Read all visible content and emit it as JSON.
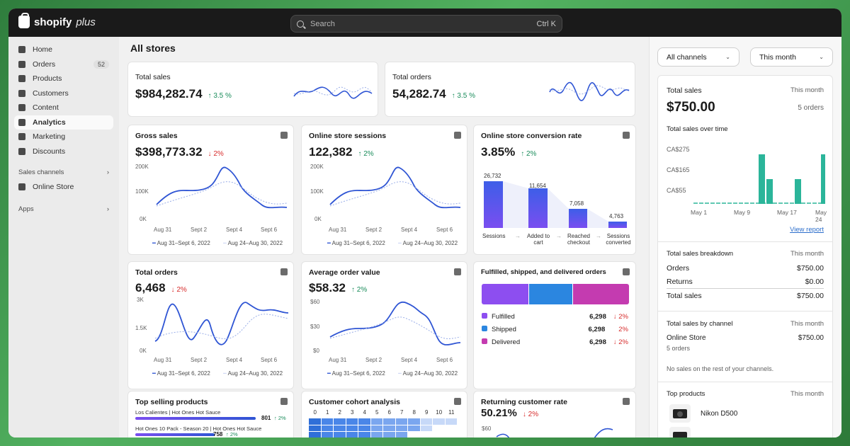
{
  "app": {
    "brand": "shopify",
    "brand_suffix": "plus"
  },
  "search": {
    "placeholder": "Search",
    "shortcut": "Ctrl K"
  },
  "sidebar": {
    "items": [
      {
        "label": "Home",
        "icon": "home-icon"
      },
      {
        "label": "Orders",
        "icon": "orders-icon",
        "badge": "52"
      },
      {
        "label": "Products",
        "icon": "tag-icon"
      },
      {
        "label": "Customers",
        "icon": "person-icon"
      },
      {
        "label": "Content",
        "icon": "content-icon"
      },
      {
        "label": "Analytics",
        "icon": "analytics-icon",
        "active": true
      },
      {
        "label": "Marketing",
        "icon": "marketing-icon"
      },
      {
        "label": "Discounts",
        "icon": "discount-icon"
      }
    ],
    "sales_channels": "Sales channels",
    "online_store": "Online Store",
    "apps": "Apps"
  },
  "main": {
    "title": "All stores",
    "total_sales": {
      "label": "Total sales",
      "value": "$984,282.74",
      "delta": "3.5 %"
    },
    "total_orders": {
      "label": "Total orders",
      "value": "54,282.74",
      "delta": "3.5 %"
    },
    "gross_sales": {
      "label": "Gross sales",
      "value": "$398,773.32",
      "delta": "2%",
      "yticks": [
        "200K",
        "100K",
        "0K"
      ]
    },
    "sessions": {
      "label": "Online store sessions",
      "value": "122,382",
      "delta": "2%",
      "yticks": [
        "200K",
        "100K",
        "0K"
      ]
    },
    "conversion": {
      "label": "Online store conversion rate",
      "value": "3.85%",
      "delta": "2%",
      "steps": [
        {
          "label": "Sessions",
          "value": "26,732"
        },
        {
          "label": "Added to cart",
          "value": "11,654"
        },
        {
          "label": "Reached checkout",
          "value": "7,058"
        },
        {
          "label": "Sessions converted",
          "value": "4,763"
        }
      ]
    },
    "orders_chart": {
      "label": "Total orders",
      "value": "6,468",
      "delta": "2%",
      "yticks": [
        "3K",
        "1.5K",
        "0K"
      ]
    },
    "aov": {
      "label": "Average order value",
      "value": "$58.32",
      "delta": "2%",
      "yticks": [
        "$60",
        "$30",
        "$0"
      ]
    },
    "fulfilled": {
      "label": "Fulfilled, shipped, and delivered orders",
      "rows": [
        {
          "label": "Fulfilled",
          "value": "6,298",
          "delta": "2%",
          "color": "#8d4ef0"
        },
        {
          "label": "Shipped",
          "value": "6,298",
          "delta": "2%",
          "color": "#2b86e0"
        },
        {
          "label": "Delivered",
          "value": "6,298",
          "delta": "2%",
          "color": "#c43bb0"
        }
      ]
    },
    "xticks": [
      "Aug 31",
      "Sept 2",
      "Sept 4",
      "Sept 6"
    ],
    "legend_current": "Aug 31–Sept 6, 2022",
    "legend_previous": "Aug 24–Aug 30, 2022",
    "top_products": {
      "label": "Top selling products",
      "items": [
        {
          "name": "Los Calientes | Hot Ones Hot Sauce",
          "value": "801",
          "delta": "2%"
        },
        {
          "name": "Hot Ones 10 Pack - Season 20 | Hot Ones Hot Sauce",
          "value": "758",
          "delta": "2%"
        }
      ]
    },
    "cohort": {
      "label": "Customer cohort analysis",
      "cols": [
        "0",
        "1",
        "2",
        "3",
        "4",
        "5",
        "6",
        "7",
        "8",
        "9",
        "10",
        "11"
      ]
    },
    "returning": {
      "label": "Returning customer rate",
      "value": "50.21%",
      "delta": "2%",
      "ytick": "$60"
    }
  },
  "right": {
    "channels_dd": "All channels",
    "period_dd": "This month",
    "total_sales": {
      "label": "Total sales",
      "period": "This month",
      "value": "$750.00",
      "orders": "5 orders"
    },
    "over_time": {
      "label": "Total sales over time",
      "yticks": [
        "CA$275",
        "CA$165",
        "CA$55"
      ],
      "xticks": [
        "May 1",
        "May 9",
        "May 17",
        "May 24"
      ],
      "link": "View report"
    },
    "breakdown": {
      "label": "Total sales breakdown",
      "period": "This month",
      "rows": [
        {
          "label": "Orders",
          "value": "$750.00"
        },
        {
          "label": "Returns",
          "value": "$0.00"
        },
        {
          "label": "Total sales",
          "value": "$750.00"
        }
      ]
    },
    "by_channel": {
      "label": "Total sales by channel",
      "period": "This month",
      "channel": "Online Store",
      "value": "$750.00",
      "orders": "5 orders",
      "note": "No sales on the rest of your channels."
    },
    "top_products": {
      "label": "Top products",
      "period": "This month",
      "item": "Nikon D500"
    }
  },
  "colors": {
    "accent": "#2f55d4",
    "teal": "#2bb59a",
    "up": "#1a8c5b",
    "down": "#d72c2c",
    "topbar": "#1a1a1a"
  }
}
